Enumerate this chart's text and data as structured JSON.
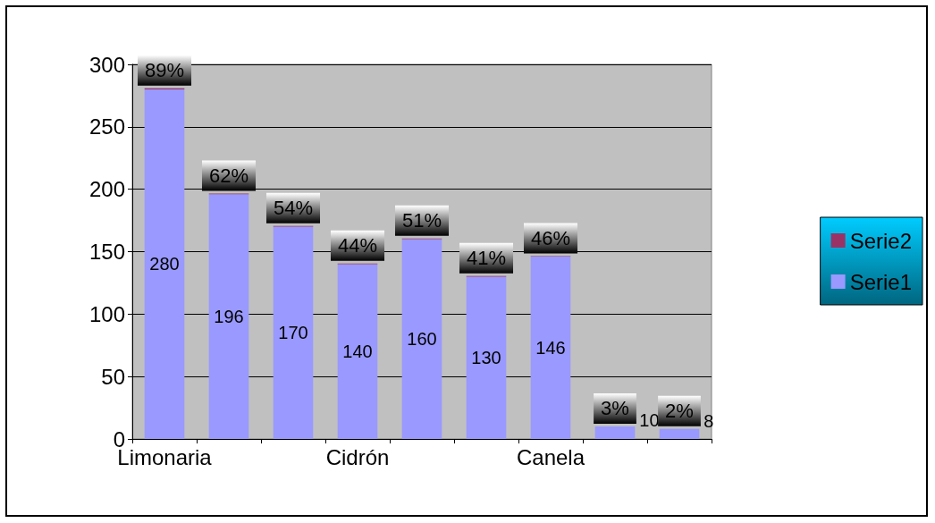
{
  "chart_data": {
    "type": "bar",
    "stacked": true,
    "categories": [
      "Limonaria",
      null,
      null,
      "Cidrón",
      null,
      null,
      "Canela",
      null,
      null
    ],
    "series": [
      {
        "name": "Serie1",
        "color": "#9999ff",
        "values": [
          280,
          196,
          170,
          140,
          160,
          130,
          146,
          10,
          8
        ],
        "value_labels": [
          "280",
          "196",
          "170",
          "140",
          "160",
          "130",
          "146",
          "10",
          "8"
        ]
      },
      {
        "name": "Serie2",
        "color": "#993366",
        "values": [
          0.89,
          0.62,
          0.54,
          0.44,
          0.51,
          0.41,
          0.46,
          0.03,
          0.02
        ],
        "value_labels": [
          "89%",
          "62%",
          "54%",
          "44%",
          "51%",
          "41%",
          "46%",
          "3%",
          "2%"
        ]
      }
    ],
    "ylim": [
      0,
      300
    ],
    "yticks": [
      0,
      50,
      100,
      150,
      200,
      250,
      300
    ],
    "grid": "y",
    "legend": "right"
  }
}
